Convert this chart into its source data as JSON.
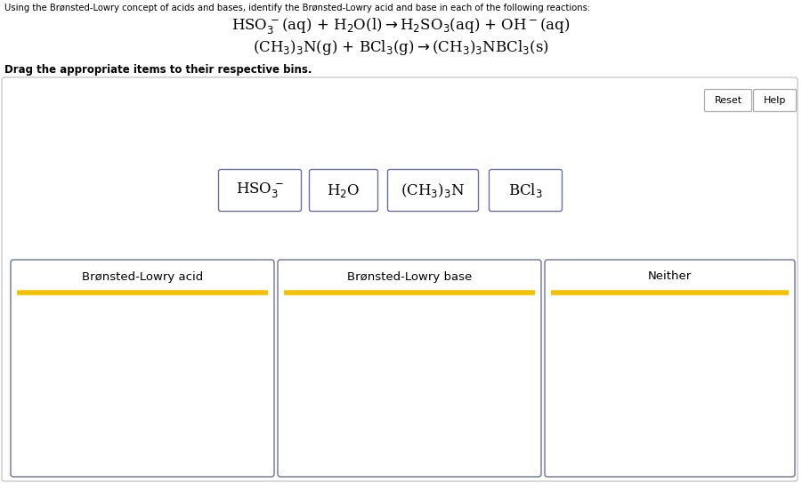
{
  "bg_color": "#ffffff",
  "header_text": "Using the Brønsted-Lowry concept of acids and bases, identify the Brønsted-Lowry acid and base in each of the following reactions:",
  "drag_text": "Drag the appropriate items to their respective bins.",
  "buttons": [
    "Reset",
    "Help"
  ],
  "bins": [
    "Brønsted-Lowry acid",
    "Brønsted-Lowry base",
    "Neither"
  ],
  "box_border_color": "#6b6fa8",
  "bin_header_line_color": "#f5c000",
  "button_border_color": "#aaaaaa",
  "text_color": "#000000",
  "outer_border_color": "#bbbbbb",
  "fig_width": 9.01,
  "fig_height": 5.43,
  "dpi": 100
}
